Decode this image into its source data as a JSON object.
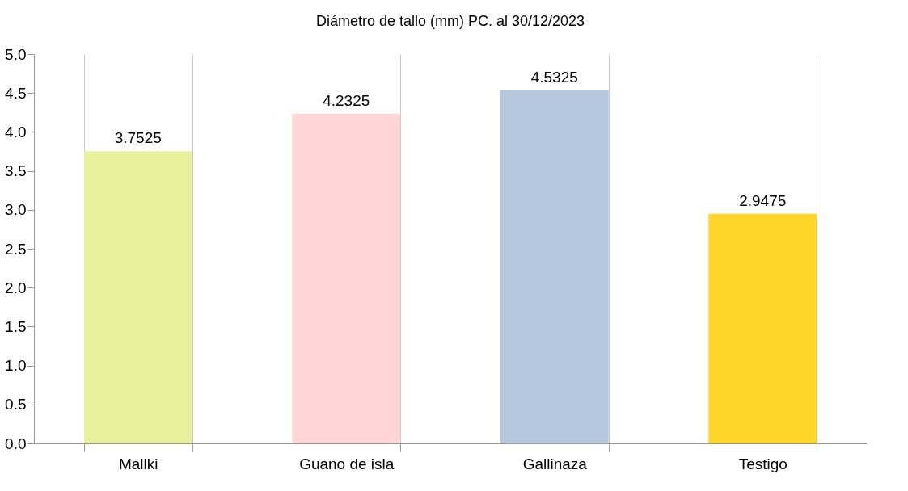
{
  "chart_data": {
    "type": "bar",
    "title": "Diámetro de tallo (mm) PC. al 30/12/2023",
    "categories": [
      "Mallki",
      "Guano de isla",
      "Gallinaza",
      "Testigo"
    ],
    "values": [
      3.7525,
      4.2325,
      4.5325,
      2.9475
    ],
    "colors": [
      "#e8f09c",
      "#ffd5d5",
      "#b5c8dd",
      "#fdd52b"
    ],
    "ylim": [
      0,
      5
    ],
    "yticks": [
      {
        "value": 0,
        "label": "0.0"
      },
      {
        "value": 0.5,
        "label": "0.5"
      },
      {
        "value": 1,
        "label": "1.0"
      },
      {
        "value": 1.5,
        "label": "1.5"
      },
      {
        "value": 2,
        "label": "2.0"
      },
      {
        "value": 2.5,
        "label": "2.5"
      },
      {
        "value": 3,
        "label": "3.0"
      },
      {
        "value": 3.5,
        "label": "3.5"
      },
      {
        "value": 4,
        "label": "4.0"
      },
      {
        "value": 4.5,
        "label": "4.5"
      },
      {
        "value": 5,
        "label": "5.0"
      }
    ],
    "grid": "x",
    "data_labels": true
  }
}
